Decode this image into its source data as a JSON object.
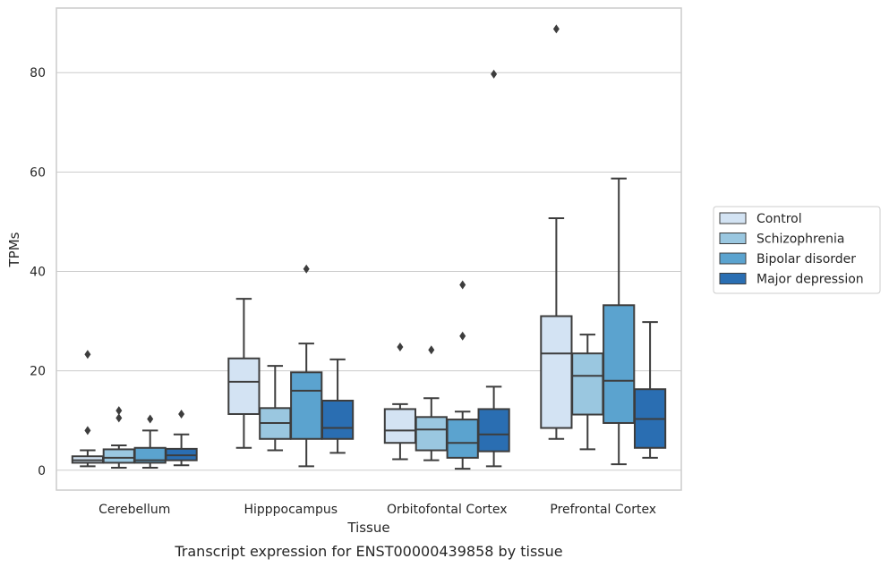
{
  "chart_data": {
    "type": "box",
    "title": "",
    "caption": "Transcript expression for ENST00000439858 by tissue",
    "xlabel": "Tissue",
    "ylabel": "TPMs",
    "ylim": [
      -4,
      93
    ],
    "yticks": [
      0,
      20,
      40,
      60,
      80
    ],
    "grid": "horizontal",
    "legend_placement": "right",
    "categories": [
      "Cerebellum",
      "Hipppocampus",
      "Orbitofontal Cortex",
      "Prefrontal Cortex"
    ],
    "series": [
      {
        "name": "Control",
        "color": "#d3e3f3",
        "boxes": [
          {
            "whisker_low": 0.8,
            "q1": 1.5,
            "median": 2.0,
            "q3": 2.8,
            "whisker_high": 4.0,
            "outliers": [
              8.0,
              23.3
            ]
          },
          {
            "whisker_low": 4.5,
            "q1": 11.3,
            "median": 17.8,
            "q3": 22.5,
            "whisker_high": 34.5,
            "outliers": []
          },
          {
            "whisker_low": 2.2,
            "q1": 5.5,
            "median": 8.0,
            "q3": 12.3,
            "whisker_high": 13.3,
            "outliers": [
              24.8
            ]
          },
          {
            "whisker_low": 6.3,
            "q1": 8.5,
            "median": 23.5,
            "q3": 31.0,
            "whisker_high": 50.7,
            "outliers": [
              88.8
            ]
          }
        ]
      },
      {
        "name": "Schizophrenia",
        "color": "#9ac7e0",
        "boxes": [
          {
            "whisker_low": 0.5,
            "q1": 1.5,
            "median": 2.5,
            "q3": 4.2,
            "whisker_high": 5.0,
            "outliers": [
              10.5,
              12.0
            ]
          },
          {
            "whisker_low": 4.0,
            "q1": 6.3,
            "median": 9.5,
            "q3": 12.5,
            "whisker_high": 21.0,
            "outliers": []
          },
          {
            "whisker_low": 2.0,
            "q1": 4.0,
            "median": 8.2,
            "q3": 10.7,
            "whisker_high": 14.5,
            "outliers": [
              24.2
            ]
          },
          {
            "whisker_low": 4.2,
            "q1": 11.2,
            "median": 19.0,
            "q3": 23.5,
            "whisker_high": 27.3,
            "outliers": []
          }
        ]
      },
      {
        "name": "Bipolar disorder",
        "color": "#5ba3cf",
        "boxes": [
          {
            "whisker_low": 0.5,
            "q1": 1.5,
            "median": 2.0,
            "q3": 4.5,
            "whisker_high": 8.0,
            "outliers": [
              10.3
            ]
          },
          {
            "whisker_low": 0.8,
            "q1": 6.3,
            "median": 16.0,
            "q3": 19.7,
            "whisker_high": 25.5,
            "outliers": [
              40.5
            ]
          },
          {
            "whisker_low": 0.3,
            "q1": 2.5,
            "median": 5.5,
            "q3": 10.2,
            "whisker_high": 11.8,
            "outliers": [
              27.0,
              37.3
            ]
          },
          {
            "whisker_low": 1.2,
            "q1": 9.5,
            "median": 18.0,
            "q3": 33.2,
            "whisker_high": 58.7,
            "outliers": []
          }
        ]
      },
      {
        "name": "Major depression",
        "color": "#2a6eb2",
        "boxes": [
          {
            "whisker_low": 1.0,
            "q1": 2.0,
            "median": 3.0,
            "q3": 4.3,
            "whisker_high": 7.2,
            "outliers": [
              11.3
            ]
          },
          {
            "whisker_low": 3.5,
            "q1": 6.3,
            "median": 8.5,
            "q3": 14.0,
            "whisker_high": 22.3,
            "outliers": []
          },
          {
            "whisker_low": 0.8,
            "q1": 3.8,
            "median": 7.2,
            "q3": 12.3,
            "whisker_high": 16.8,
            "outliers": [
              79.7
            ]
          },
          {
            "whisker_low": 2.5,
            "q1": 4.5,
            "median": 10.3,
            "q3": 16.3,
            "whisker_high": 29.8,
            "outliers": []
          }
        ]
      }
    ]
  },
  "colors": {
    "edge": "#3d3d3d",
    "grid": "#cccccc",
    "frame": "#cccccc",
    "text": "#262626"
  }
}
